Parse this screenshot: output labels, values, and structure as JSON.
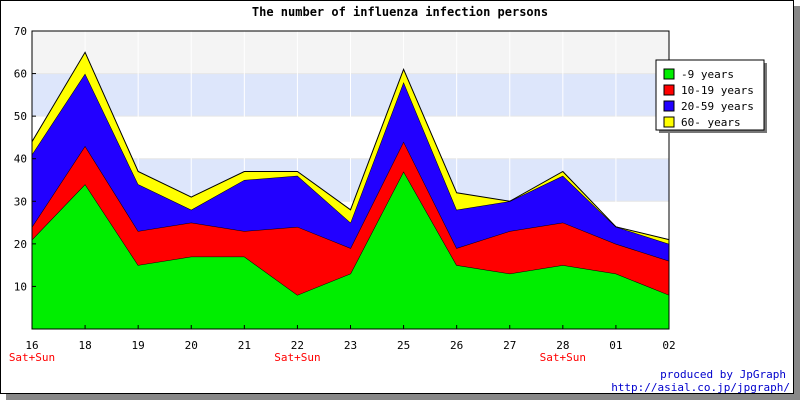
{
  "chart_data": {
    "type": "area",
    "stacked": true,
    "title": "The number of influenza infection persons",
    "categories": [
      "16",
      "18",
      "19",
      "20",
      "21",
      "22",
      "23",
      "25",
      "26",
      "27",
      "28",
      "01",
      "02"
    ],
    "weekend_labels": [
      "Sat+Sun",
      "",
      "",
      "",
      "",
      "Sat+Sun",
      "",
      "",
      "",
      "",
      "Sat+Sun",
      "",
      ""
    ],
    "ylim": [
      0,
      70
    ],
    "yticks": [
      10,
      20,
      30,
      40,
      50,
      60,
      70
    ],
    "grid": true,
    "legend_position": "right",
    "series": [
      {
        "name": "-9 years",
        "color": "#00ee00",
        "values": [
          21,
          34,
          15,
          17,
          17,
          8,
          13,
          37,
          15,
          13,
          15,
          13,
          8
        ]
      },
      {
        "name": "10-19 years",
        "color": "#ff0000",
        "values": [
          3,
          9,
          8,
          8,
          6,
          16,
          6,
          7,
          4,
          10,
          10,
          7,
          8
        ]
      },
      {
        "name": "20-59 years",
        "color": "#2200ff",
        "values": [
          17,
          17,
          11,
          3,
          12,
          12,
          6,
          14,
          9,
          7,
          11,
          4,
          4
        ]
      },
      {
        "name": "60- years",
        "color": "#ffff00",
        "values": [
          3,
          5,
          3,
          3,
          2,
          1,
          3,
          3,
          4,
          0,
          1,
          0,
          1
        ]
      }
    ]
  },
  "footer": {
    "line1": "produced by JpGraph",
    "line2": "http://asial.co.jp/jpgraph/"
  }
}
